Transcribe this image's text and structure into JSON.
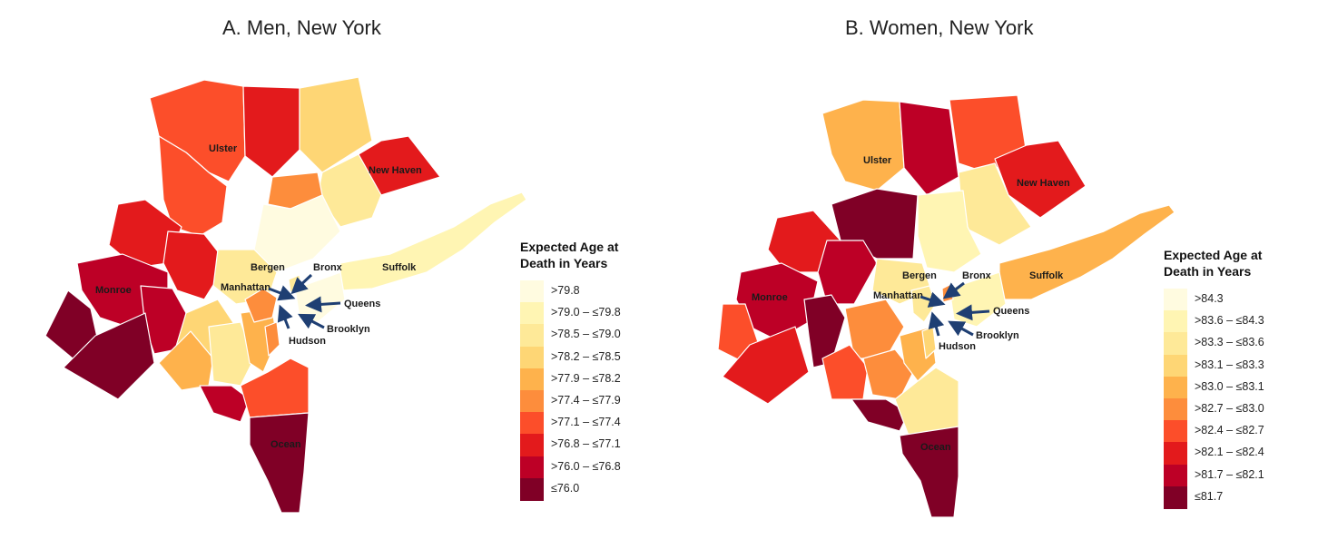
{
  "panels": [
    {
      "title": "A. Men, New York",
      "legend_title_line1": "Expected Age at",
      "legend_title_line2": "Death in Years",
      "legend": [
        {
          "label": ">79.8",
          "color": "#fffbe0"
        },
        {
          "label": ">79.0 – ≤79.8",
          "color": "#fff5b3"
        },
        {
          "label": ">78.5 – ≤79.0",
          "color": "#fee998"
        },
        {
          "label": ">78.2 – ≤78.5",
          "color": "#fed675"
        },
        {
          "label": ">77.9 – ≤78.2",
          "color": "#feb24c"
        },
        {
          "label": ">77.4 – ≤77.9",
          "color": "#fd8d3c"
        },
        {
          "label": ">77.1 – ≤77.4",
          "color": "#fc4e2a"
        },
        {
          "label": ">76.8 – ≤77.1",
          "color": "#e31a1c"
        },
        {
          "label": ">76.0 – ≤76.8",
          "color": "#bd0026"
        },
        {
          "label": "≤76.0",
          "color": "#800026"
        }
      ],
      "labels": {
        "ulster": "Ulster",
        "new_haven": "New Haven",
        "bergen": "Bergen",
        "bronx": "Bronx",
        "suffolk": "Suffolk",
        "manhattan": "Manhattan",
        "queens": "Queens",
        "brooklyn": "Brooklyn",
        "hudson": "Hudson",
        "monroe": "Monroe",
        "ocean": "Ocean"
      }
    },
    {
      "title": "B. Women, New York",
      "legend_title_line1": "Expected Age at",
      "legend_title_line2": "Death in Years",
      "legend": [
        {
          "label": ">84.3",
          "color": "#fffbe0"
        },
        {
          "label": ">83.6 – ≤84.3",
          "color": "#fff5b3"
        },
        {
          "label": ">83.3 – ≤83.6",
          "color": "#fee998"
        },
        {
          "label": ">83.1 – ≤83.3",
          "color": "#fed675"
        },
        {
          "label": ">83.0 – ≤83.1",
          "color": "#feb24c"
        },
        {
          "label": ">82.7 – ≤83.0",
          "color": "#fd8d3c"
        },
        {
          "label": ">82.4 – ≤82.7",
          "color": "#fc4e2a"
        },
        {
          "label": ">82.1 – ≤82.4",
          "color": "#e31a1c"
        },
        {
          "label": ">81.7 – ≤82.1",
          "color": "#bd0026"
        },
        {
          "label": "≤81.7",
          "color": "#800026"
        }
      ],
      "labels": {
        "ulster": "Ulster",
        "new_haven": "New Haven",
        "bergen": "Bergen",
        "bronx": "Bronx",
        "suffolk": "Suffolk",
        "manhattan": "Manhattan",
        "queens": "Queens",
        "brooklyn": "Brooklyn",
        "hudson": "Hudson",
        "monroe": "Monroe",
        "ocean": "Ocean"
      }
    }
  ]
}
